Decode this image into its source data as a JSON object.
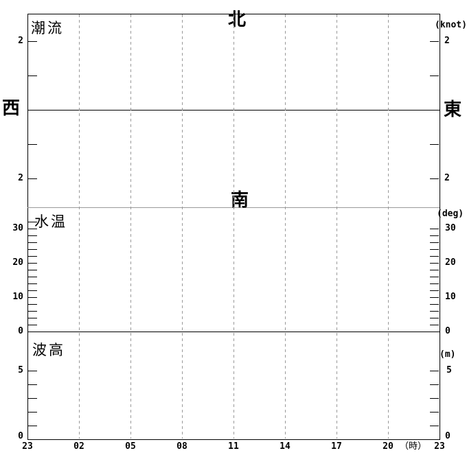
{
  "chart_data": {
    "type": "line",
    "description": "Empty marine forecast chart grid (no data series plotted) with three stacked panels sharing one time axis",
    "panels": [
      {
        "name": "tidal-current",
        "label": "潮流",
        "unit": "(knot)",
        "compass": {
          "top": "北",
          "bottom": "南",
          "left": "西",
          "right": "東"
        },
        "y_axis": {
          "center_value": 0,
          "tick_interval_knots": 1,
          "edge_tick_label": "2"
        },
        "series": []
      },
      {
        "name": "water-temperature",
        "label": "水温",
        "unit": "(deg)",
        "y_axis": {
          "min": 0,
          "max": 32,
          "tick_interval": 2,
          "labeled_ticks": [
            30,
            20,
            10,
            0
          ]
        },
        "series": []
      },
      {
        "name": "wave-height",
        "label": "波高",
        "unit": "(m)",
        "y_axis": {
          "min": 0,
          "max": 5,
          "tick_interval": 1,
          "labeled_ticks": [
            5,
            0
          ]
        },
        "series": []
      }
    ],
    "x_axis": {
      "tick_labels": [
        "23",
        "02",
        "05",
        "08",
        "11",
        "14",
        "17",
        "20",
        "23"
      ],
      "unit_label": "（時）",
      "gridline_hours": [
        "02",
        "05",
        "08",
        "11",
        "14",
        "17",
        "20"
      ],
      "grid": "dashed-vertical"
    },
    "layout_hints": {
      "legend": "none",
      "gridline_color": "#999999",
      "axis_color": "#000000",
      "panel_divider_color": "#999999",
      "background": "#ffffff"
    }
  }
}
